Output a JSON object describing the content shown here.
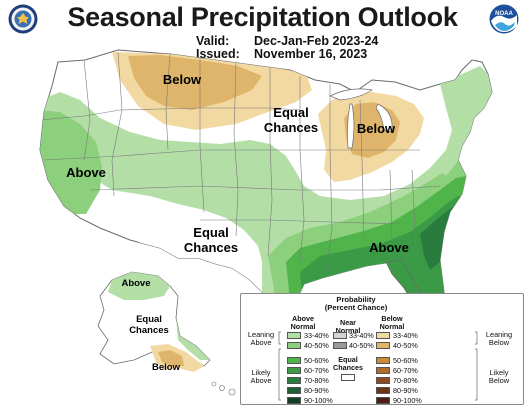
{
  "header": {
    "title": "Seasonal Precipitation Outlook",
    "valid_label": "Valid:",
    "valid_value": "Dec-Jan-Feb 2023-24",
    "issued_label": "Issued:",
    "issued_value": "November 16, 2023",
    "seal_icon": "department-of-commerce-seal-icon",
    "noaa_logo": "noaa-logo-icon",
    "noaa_text": "NOAA"
  },
  "map_labels": {
    "below_north": "Below",
    "below_greatlakes": "Below",
    "equal_north": [
      "Equal",
      "Chances"
    ],
    "equal_south": [
      "Equal",
      "Chances"
    ],
    "above_west": "Above",
    "above_southeast": "Above",
    "alaska_above": "Above",
    "alaska_equal": [
      "Equal",
      "Chances"
    ],
    "alaska_below": "Below"
  },
  "legend": {
    "title": [
      "Probability",
      "(Percent Chance)"
    ],
    "above_header": [
      "Above",
      "Normal"
    ],
    "near_header": [
      "Near",
      "Normal"
    ],
    "below_header": [
      "Below",
      "Normal"
    ],
    "leaning_above": [
      "Leaning",
      "Above"
    ],
    "likely_above": [
      "Likely",
      "Above"
    ],
    "leaning_below": [
      "Leaning",
      "Below"
    ],
    "likely_below": [
      "Likely",
      "Below"
    ],
    "equal_chances": [
      "Equal",
      "Chances"
    ],
    "rows": [
      "33-40%",
      "40-50%",
      "50-60%",
      "60-70%",
      "70-80%",
      "80-90%",
      "90-100%"
    ],
    "near_rows": [
      "33-40%",
      "40-50%"
    ],
    "above_colors": [
      "#b3dfa7",
      "#8ccf7c",
      "#4fb54a",
      "#3a9a45",
      "#2a7c3e",
      "#1e5f33",
      "#123f22"
    ],
    "near_colors": [
      "#d4d4d4",
      "#9a9a9a"
    ],
    "below_colors": [
      "#f2d9a2",
      "#dfb56b",
      "#c98b3c",
      "#b06a2a",
      "#8f4a1e",
      "#6c3316",
      "#4a1f0e"
    ]
  },
  "colors": {
    "above_33_40": "#b3dfa7",
    "above_40_50": "#8ccf7c",
    "above_50_60": "#4fb54a",
    "above_60_70": "#3a9a45",
    "above_70_80": "#2a7c3e",
    "below_33_40": "#f2d9a2",
    "below_40_50": "#dfb56b",
    "below_50_60": "#c98b3c"
  }
}
